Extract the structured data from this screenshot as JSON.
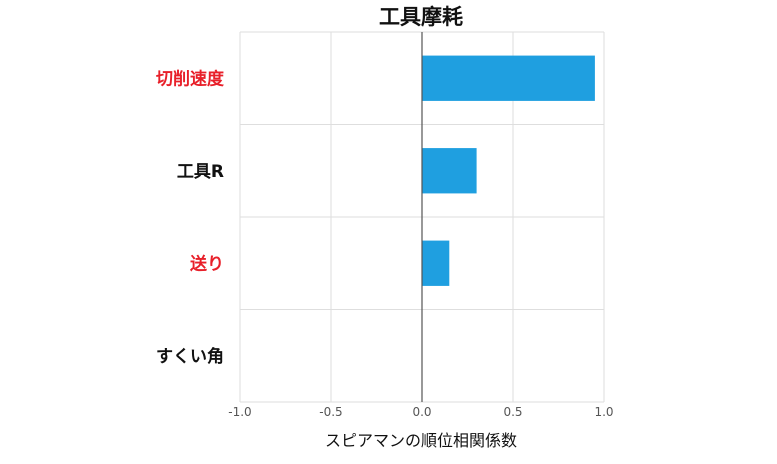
{
  "chart_data": {
    "type": "bar",
    "orientation": "horizontal",
    "title": "工具摩耗",
    "xlabel": "スピアマンの順位相関係数",
    "ylabel": "",
    "xlim": [
      -1.0,
      1.0
    ],
    "xticks": [
      -1.0,
      -0.5,
      0.0,
      0.5,
      1.0
    ],
    "xtick_labels": [
      "-1.0",
      "-0.5",
      "0.0",
      "0.5",
      "1.0"
    ],
    "grid": true,
    "categories": [
      "切削速度",
      "工具R",
      "送り",
      "すくい角"
    ],
    "category_colors": [
      "#e8202a",
      "#111111",
      "#e8202a",
      "#111111"
    ],
    "values": [
      0.95,
      0.3,
      0.15,
      0.0
    ],
    "bar_color": "#1f9fe0"
  }
}
